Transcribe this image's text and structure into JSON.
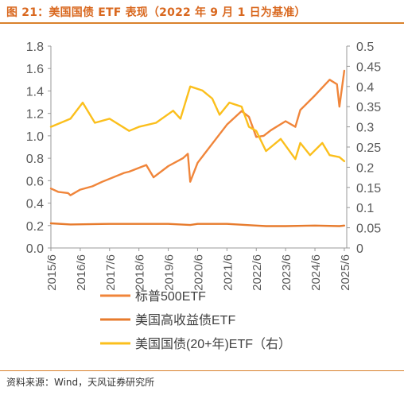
{
  "header": {
    "title": "图 21：美国国债 ETF 表现（2022 年 9 月 1 日为基准）"
  },
  "footer": {
    "source": "资料来源：Wind，天风证券研究所"
  },
  "colors": {
    "accent": "#d9812c",
    "series_sp500": "#f0853a",
    "series_hy": "#e77b2d",
    "series_treasury": "#fbbf1c"
  },
  "chart_data": {
    "type": "line",
    "x_ticks": [
      "2015/6",
      "2016/6",
      "2017/6",
      "2018/6",
      "2019/6",
      "2020/6",
      "2021/6",
      "2022/6",
      "2023/6",
      "2024/6",
      "2025/6"
    ],
    "x_range": [
      "2015-06",
      "2025-07"
    ],
    "y_left": {
      "range": [
        0,
        1.8
      ],
      "ticks": [
        "0.0",
        "0.2",
        "0.4",
        "0.6",
        "0.8",
        "1.0",
        "1.2",
        "1.4",
        "1.6",
        "1.8"
      ]
    },
    "y_right": {
      "range": [
        0,
        0.5
      ],
      "ticks": [
        "0",
        "0.05",
        "0.1",
        "0.15",
        "0.2",
        "0.25",
        "0.3",
        "0.35",
        "0.4",
        "0.45",
        "0.5"
      ]
    },
    "grid": false,
    "legend_position": "bottom",
    "series": [
      {
        "name": "标普500ETF",
        "axis": "left",
        "x": [
          "2015-06",
          "2015-09",
          "2016-01",
          "2016-02",
          "2016-06",
          "2016-11",
          "2017-03",
          "2017-12",
          "2018-02",
          "2018-09",
          "2018-12",
          "2019-06",
          "2019-12",
          "2020-02",
          "2020-03",
          "2020-06",
          "2020-12",
          "2021-06",
          "2021-12",
          "2022-03",
          "2022-06",
          "2022-09",
          "2022-12",
          "2023-06",
          "2023-10",
          "2023-12",
          "2024-06",
          "2024-12",
          "2025-03",
          "2025-04",
          "2025-06"
        ],
        "values": [
          0.53,
          0.5,
          0.49,
          0.47,
          0.52,
          0.55,
          0.59,
          0.67,
          0.68,
          0.74,
          0.63,
          0.73,
          0.8,
          0.84,
          0.59,
          0.76,
          0.93,
          1.1,
          1.22,
          1.17,
          0.99,
          1.0,
          1.05,
          1.13,
          1.08,
          1.23,
          1.36,
          1.5,
          1.46,
          1.26,
          1.58
        ]
      },
      {
        "name": "美国高收益债ETF",
        "axis": "left",
        "x": [
          "2015-06",
          "2016-02",
          "2017-06",
          "2018-06",
          "2019-06",
          "2020-03",
          "2020-06",
          "2021-06",
          "2022-06",
          "2022-10",
          "2023-06",
          "2024-06",
          "2025-04",
          "2025-06"
        ],
        "values": [
          0.22,
          0.21,
          0.215,
          0.215,
          0.215,
          0.205,
          0.215,
          0.215,
          0.2,
          0.195,
          0.195,
          0.2,
          0.195,
          0.2
        ]
      },
      {
        "name": "美国国债(20+年)ETF（右）",
        "axis": "right",
        "x": [
          "2015-06",
          "2016-02",
          "2016-07",
          "2016-12",
          "2017-06",
          "2018-02",
          "2018-06",
          "2019-01",
          "2019-08",
          "2019-11",
          "2020-03",
          "2020-08",
          "2020-12",
          "2021-03",
          "2021-07",
          "2021-12",
          "2022-03",
          "2022-06",
          "2022-10",
          "2022-12",
          "2023-04",
          "2023-10",
          "2023-12",
          "2024-04",
          "2024-09",
          "2024-12",
          "2025-04",
          "2025-06"
        ],
        "values": [
          0.3,
          0.32,
          0.36,
          0.31,
          0.32,
          0.29,
          0.3,
          0.31,
          0.34,
          0.32,
          0.4,
          0.39,
          0.37,
          0.33,
          0.36,
          0.35,
          0.3,
          0.29,
          0.24,
          0.25,
          0.27,
          0.22,
          0.26,
          0.23,
          0.26,
          0.23,
          0.225,
          0.215
        ]
      }
    ]
  }
}
